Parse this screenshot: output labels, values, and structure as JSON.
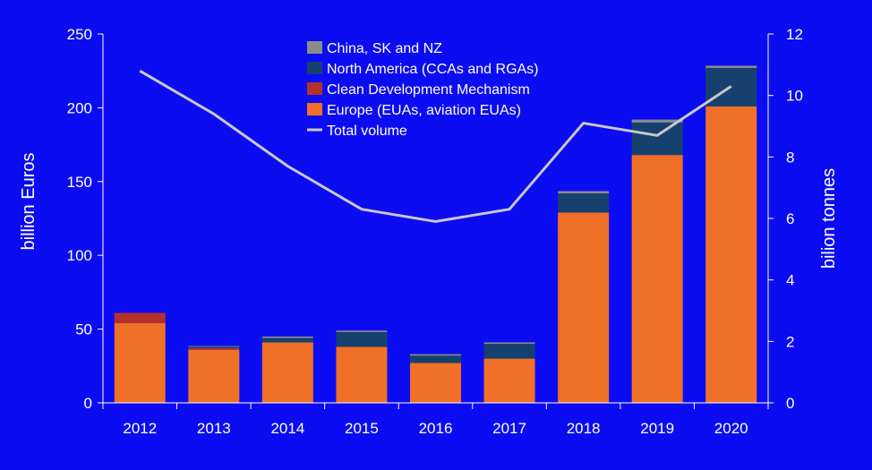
{
  "chart_data": {
    "type": "bar",
    "stacked": true,
    "categories": [
      "2012",
      "2013",
      "2014",
      "2015",
      "2016",
      "2017",
      "2018",
      "2019",
      "2020"
    ],
    "series": [
      {
        "name": "Europe (EUAs, aviation EUAs)",
        "values": [
          54,
          36,
          41,
          38,
          27,
          30,
          129,
          168,
          201
        ],
        "color": "#F07028",
        "axis": "left"
      },
      {
        "name": "Clean Development Mechanism",
        "values": [
          7,
          1,
          0,
          0,
          0,
          0,
          0,
          0,
          0
        ],
        "color": "#B3322C",
        "axis": "left"
      },
      {
        "name": "North America (CCAs and RGAs)",
        "values": [
          0,
          1,
          3,
          10,
          5,
          10,
          13,
          22,
          26
        ],
        "color": "#16416E",
        "axis": "left"
      },
      {
        "name": "China, SK and NZ",
        "values": [
          0,
          0.5,
          1,
          1,
          1,
          1,
          1.5,
          2,
          1.5
        ],
        "color": "#8C8C8C",
        "axis": "left"
      }
    ],
    "line_series": {
      "name": "Total volume",
      "values": [
        10.8,
        9.4,
        7.7,
        6.3,
        5.9,
        6.3,
        9.1,
        8.7,
        10.3
      ],
      "color": "#C8C8C8",
      "axis": "right"
    },
    "legend_order": [
      "China, SK and NZ",
      "North America (CCAs and RGAs)",
      "Clean Development Mechanism",
      "Europe (EUAs, aviation EUAs)",
      "Total volume"
    ],
    "ylabel": "billion Euros",
    "y2label": "bilion tonnes",
    "ylim": [
      0,
      250
    ],
    "y2lim": [
      0,
      12
    ],
    "yticks": [
      "0",
      "50",
      "100",
      "150",
      "200",
      "250"
    ],
    "y2ticks": [
      "0",
      "2",
      "4",
      "6",
      "8",
      "10",
      "12"
    ],
    "legend_position": "top-center",
    "grid": false
  }
}
